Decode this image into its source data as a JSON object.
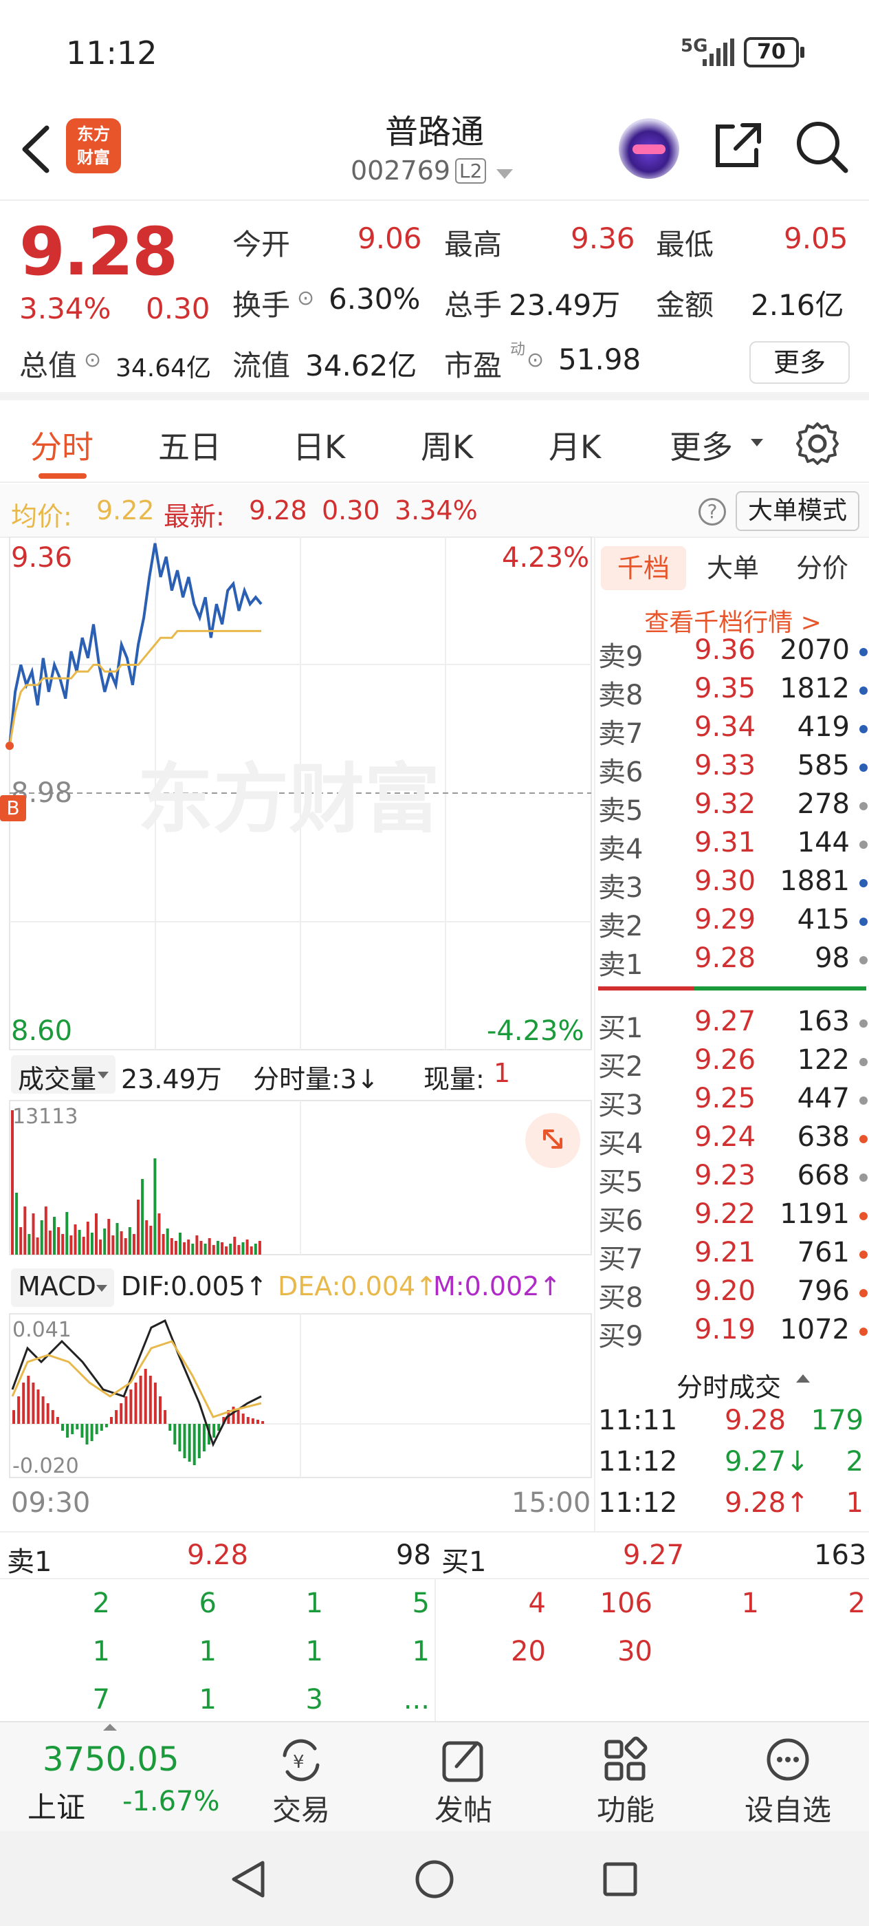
{
  "status": {
    "time": "11:12",
    "network": "5G",
    "battery": "70"
  },
  "header": {
    "back_label": "‹",
    "logo_line1": "东方",
    "logo_line2": "财富",
    "stock_name": "普路通",
    "stock_code": "002769",
    "level": "L2"
  },
  "quote": {
    "price": "9.28",
    "change_pct": "3.34%",
    "change": "0.30",
    "open_label": "今开",
    "open": "9.06",
    "high_label": "最高",
    "high": "9.36",
    "low_label": "最低",
    "low": "9.05",
    "turnover_label": "换手",
    "turnover": "6.30%",
    "volume_label": "总手",
    "volume": "23.49万",
    "amount_label": "金额",
    "amount": "2.16亿",
    "total_cap_label": "总值",
    "total_cap": "34.64亿",
    "float_cap_label": "流值",
    "float_cap": "34.62亿",
    "pe_label": "市盈",
    "pe_sup": "动",
    "pe": "51.98",
    "more_label": "更多"
  },
  "tabs": [
    "分时",
    "五日",
    "日K",
    "周K",
    "月K",
    "更多"
  ],
  "infoline": {
    "avg_label": "均价:",
    "avg": "9.22",
    "latest_label": "最新:",
    "latest": "9.28",
    "change": "0.30",
    "pct": "3.34%",
    "help": "?",
    "mode_label": "大单模式"
  },
  "chart": {
    "y_max": "9.36",
    "y_max_pct": "4.23%",
    "y_mid": "8.98",
    "y_min": "8.60",
    "y_min_pct": "-4.23%",
    "buy_marker": "B",
    "watermark": "东方财富",
    "vol_label": "成交量",
    "vol_total": "23.49万",
    "vol_interval": "分时量:3↓",
    "vol_now_label": "现量:",
    "vol_now": "1",
    "vol_max": "13113",
    "macd_label": "MACD",
    "dif": "DIF:0.005↑",
    "dea": "DEA:0.004↑",
    "m": "M:0.002↑",
    "macd_top": "0.041",
    "macd_bottom": "-0.020",
    "time_start": "09:30",
    "time_end": "15:00",
    "colors": {
      "price_line": "#2a5fb4",
      "avg_line": "#e8b84a",
      "up": "#d23030",
      "down": "#1a9a3a"
    }
  },
  "chart_data": {
    "type": "line",
    "title": "",
    "xlabel": "",
    "ylabel": "",
    "ylim": [
      8.6,
      9.36
    ],
    "series": [
      {
        "name": "",
        "values": [
          9.05,
          9.13,
          9.17,
          9.14,
          9.16,
          9.11,
          9.18,
          9.13,
          9.17,
          9.15,
          9.12,
          9.19,
          9.16,
          9.21,
          9.18,
          9.23,
          9.17,
          9.13,
          9.16,
          9.14,
          9.2,
          9.18,
          9.14,
          9.2,
          9.24,
          9.3,
          9.35,
          9.3,
          9.33,
          9.28,
          9.31,
          9.27,
          9.3,
          9.26,
          9.24,
          9.27,
          9.21,
          9.26,
          9.23,
          9.28,
          9.29,
          9.25,
          9.28,
          9.26,
          9.27,
          9.26
        ]
      },
      {
        "name": "",
        "values": [
          9.05,
          9.1,
          9.13,
          9.14,
          9.14,
          9.14,
          9.15,
          9.15,
          9.15,
          9.15,
          9.15,
          9.15,
          9.16,
          9.16,
          9.16,
          9.17,
          9.17,
          9.16,
          9.16,
          9.16,
          9.17,
          9.17,
          9.17,
          9.17,
          9.18,
          9.19,
          9.2,
          9.21,
          9.21,
          9.21,
          9.22,
          9.22,
          9.22,
          9.22,
          9.22,
          9.22,
          9.22,
          9.22,
          9.22,
          9.22,
          9.22,
          9.22,
          9.22,
          9.22,
          9.22,
          9.22
        ]
      }
    ]
  },
  "rightpanel": {
    "tabs": [
      "千档",
      "大单",
      "分价"
    ],
    "link": "查看千档行情 >",
    "asks": [
      {
        "n": "卖9",
        "p": "9.36",
        "v": "2070",
        "dot": "#2a5fb4"
      },
      {
        "n": "卖8",
        "p": "9.35",
        "v": "1812",
        "dot": "#2a5fb4"
      },
      {
        "n": "卖7",
        "p": "9.34",
        "v": "419",
        "dot": "#2a5fb4"
      },
      {
        "n": "卖6",
        "p": "9.33",
        "v": "585",
        "dot": "#2a5fb4"
      },
      {
        "n": "卖5",
        "p": "9.32",
        "v": "278",
        "dot": "#999999"
      },
      {
        "n": "卖4",
        "p": "9.31",
        "v": "144",
        "dot": "#999999"
      },
      {
        "n": "卖3",
        "p": "9.30",
        "v": "1881",
        "dot": "#2a5fb4"
      },
      {
        "n": "卖2",
        "p": "9.29",
        "v": "415",
        "dot": "#2a5fb4"
      },
      {
        "n": "卖1",
        "p": "9.28",
        "v": "98",
        "dot": "#999999"
      }
    ],
    "bids": [
      {
        "n": "买1",
        "p": "9.27",
        "v": "163",
        "dot": "#999999"
      },
      {
        "n": "买2",
        "p": "9.26",
        "v": "122",
        "dot": "#999999"
      },
      {
        "n": "买3",
        "p": "9.25",
        "v": "447",
        "dot": "#999999"
      },
      {
        "n": "买4",
        "p": "9.24",
        "v": "638",
        "dot": "#e8552a"
      },
      {
        "n": "买5",
        "p": "9.23",
        "v": "668",
        "dot": "#999999"
      },
      {
        "n": "买6",
        "p": "9.22",
        "v": "1191",
        "dot": "#e8552a"
      },
      {
        "n": "买7",
        "p": "9.21",
        "v": "761",
        "dot": "#e8552a"
      },
      {
        "n": "买8",
        "p": "9.20",
        "v": "796",
        "dot": "#e8552a"
      },
      {
        "n": "买9",
        "p": "9.19",
        "v": "1072",
        "dot": "#e8552a"
      }
    ],
    "trades_title": "分时成交",
    "trades": [
      {
        "t": "11:11",
        "p": "9.28",
        "v": "179",
        "pc": "red",
        "vc": "green"
      },
      {
        "t": "11:12",
        "p": "9.27↓",
        "v": "2",
        "pc": "green",
        "vc": "green"
      },
      {
        "t": "11:12",
        "p": "9.28↑",
        "v": "1",
        "pc": "red",
        "vc": "red"
      }
    ]
  },
  "bottombook": {
    "ask_label": "卖1",
    "ask_price": "9.28",
    "ask_vol": "98",
    "bid_label": "买1",
    "bid_price": "9.27",
    "bid_vol": "163",
    "ask_queue": [
      [
        "2",
        "6",
        "1",
        "5"
      ],
      [
        "1",
        "1",
        "1",
        "1"
      ],
      [
        "7",
        "1",
        "3",
        "..."
      ]
    ],
    "bid_queue": [
      [
        "4",
        "106",
        "1",
        "2"
      ],
      [
        "20",
        "30",
        "",
        ""
      ]
    ]
  },
  "bottombar": {
    "index_value": "3750.05",
    "index_name": "上证",
    "index_pct": "-1.67%",
    "items": [
      "交易",
      "发帖",
      "功能",
      "设自选"
    ]
  }
}
